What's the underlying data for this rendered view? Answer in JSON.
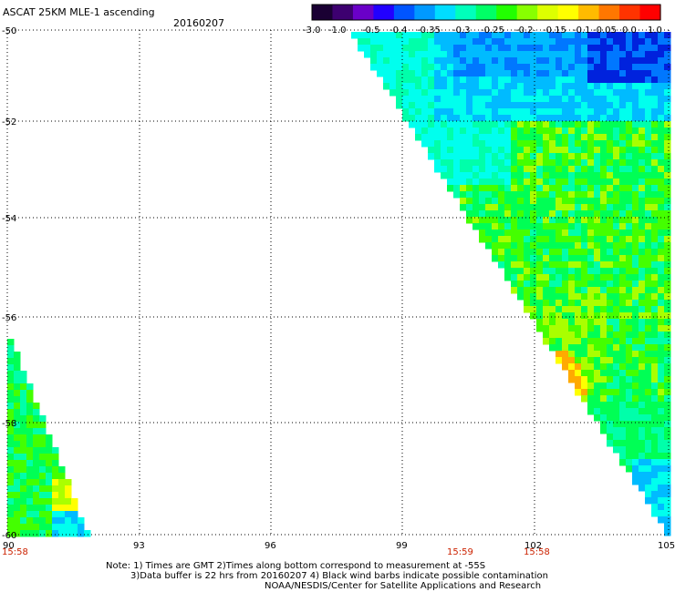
{
  "title": "ASCAT 25KM MLE-1 ascending",
  "date": "20160207",
  "colorbar": {
    "labels": [
      "-3.0",
      "-1.0",
      "-0.5",
      "-0.4",
      "-0.35",
      "-0.3",
      "-0.25",
      "-0.2",
      "-0.15",
      "-0.1",
      "-0.05",
      "0.0",
      "1.0"
    ],
    "colors": [
      "#1a0033",
      "#3d0070",
      "#6a00c8",
      "#2200ff",
      "#0055ff",
      "#0099ff",
      "#00ddff",
      "#00ffbb",
      "#00ff66",
      "#22ff00",
      "#88ff00",
      "#ddff00",
      "#ffff00",
      "#ffbb00",
      "#ff7700",
      "#ff3300",
      "#ff0000"
    ]
  },
  "axes": {
    "lat_labels": [
      "-50",
      "-52",
      "-54",
      "-56",
      "-58",
      "-60"
    ],
    "lon_labels": [
      "90",
      "93",
      "96",
      "99",
      "102",
      "105"
    ],
    "time_labels": [
      "15:58",
      "15:59",
      "15:58"
    ]
  },
  "notes": [
    "Note: 1) Times are GMT 2)Times along bottom correspond to measurement at -55S",
    "3)Data buffer is 22 hrs from 20160207 4) Black wind barbs indicate possible contamination",
    "NOAA/NESDIS/Center for Satellite Applications and Research"
  ],
  "palette": {
    "deep_blue": "#0022dd",
    "blue": "#0077ff",
    "light_blue": "#00bbff",
    "cyan": "#00ffee",
    "aqua": "#00ffaa",
    "green": "#00ff55",
    "lime": "#44ff00",
    "yellow_green": "#aaff00",
    "yellow": "#ffff00",
    "orange": "#ffaa00"
  }
}
